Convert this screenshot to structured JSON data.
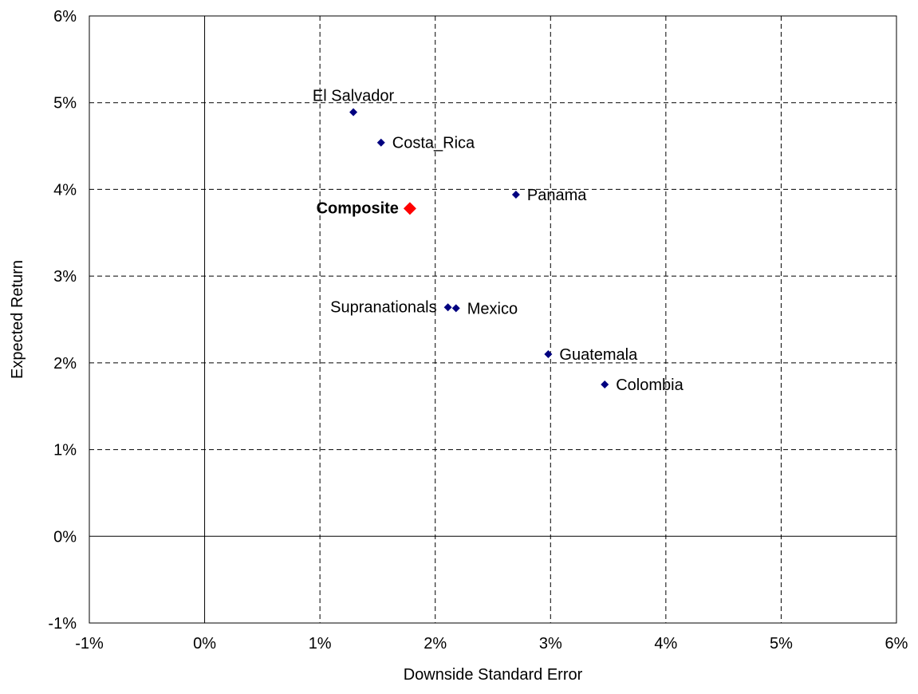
{
  "chart_data": {
    "type": "scatter",
    "title": "",
    "xlabel": "Downside Standard Error",
    "ylabel": "Expected Return",
    "xlim": [
      -1,
      6
    ],
    "ylim": [
      -1,
      6
    ],
    "x_unit": "%",
    "y_unit": "%",
    "x_ticks": [
      -1,
      0,
      1,
      2,
      3,
      4,
      5,
      6
    ],
    "y_ticks": [
      -1,
      0,
      1,
      2,
      3,
      4,
      5,
      6
    ],
    "x_tick_labels": [
      "-1%",
      "0%",
      "1%",
      "2%",
      "3%",
      "4%",
      "5%",
      "6%"
    ],
    "y_tick_labels": [
      "-1%",
      "0%",
      "1%",
      "2%",
      "3%",
      "4%",
      "5%",
      "6%"
    ],
    "grid": true,
    "legend": "none",
    "colors": {
      "country": "#000080",
      "composite": "#ff0000"
    },
    "points": [
      {
        "label": "El Salvador",
        "x": 1.29,
        "y": 4.89,
        "kind": "country",
        "label_pos": "above"
      },
      {
        "label": "Costa_Rica",
        "x": 1.53,
        "y": 4.54,
        "kind": "country",
        "label_pos": "right"
      },
      {
        "label": "Panama",
        "x": 2.7,
        "y": 3.94,
        "kind": "country",
        "label_pos": "right"
      },
      {
        "label": "Composite",
        "x": 1.78,
        "y": 3.78,
        "kind": "composite",
        "label_pos": "left"
      },
      {
        "label": "Supranationals",
        "x": 2.11,
        "y": 2.64,
        "kind": "country",
        "label_pos": "left"
      },
      {
        "label": "Mexico",
        "x": 2.18,
        "y": 2.63,
        "kind": "country",
        "label_pos": "right"
      },
      {
        "label": "Guatemala",
        "x": 2.98,
        "y": 2.1,
        "kind": "country",
        "label_pos": "right"
      },
      {
        "label": "Colombia",
        "x": 3.47,
        "y": 1.75,
        "kind": "country",
        "label_pos": "right"
      }
    ]
  }
}
